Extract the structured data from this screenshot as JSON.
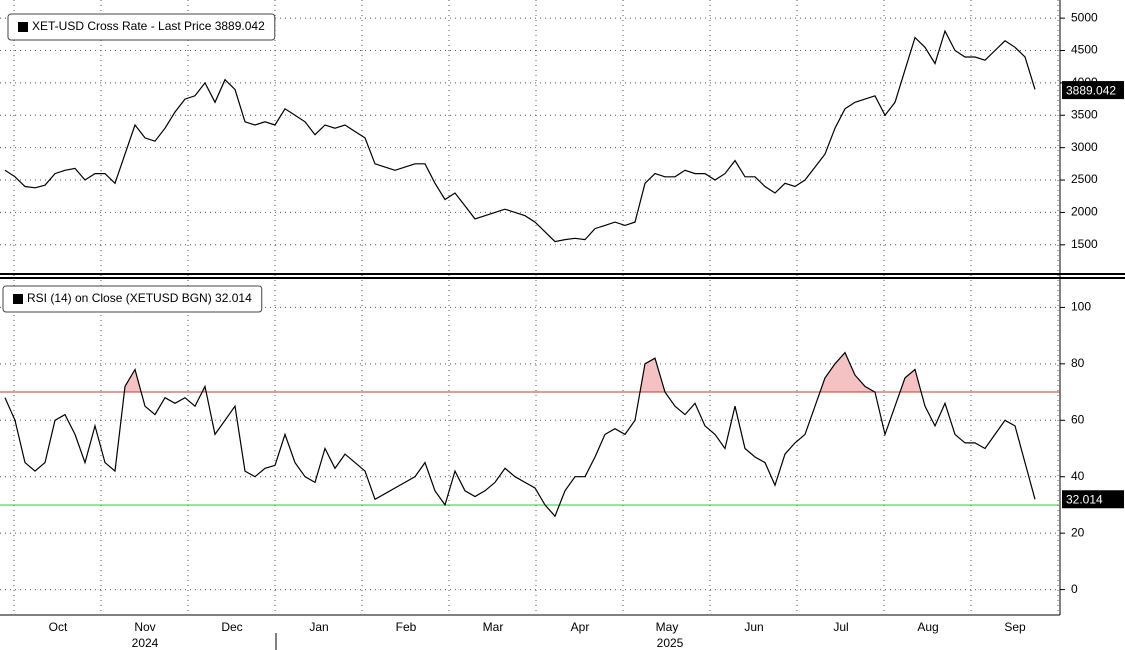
{
  "chart_data": [
    {
      "type": "line",
      "legend": "XET-USD Cross Rate - Last Price 3889.042",
      "color": "#000000",
      "last_value": 3889.042,
      "ylim": [
        1080,
        5280
      ],
      "yticks": [
        1500,
        2000,
        2500,
        3000,
        3500,
        4000,
        4500,
        5000
      ],
      "values": [
        2650,
        2550,
        2400,
        2380,
        2420,
        2600,
        2650,
        2680,
        2500,
        2600,
        2600,
        2450,
        2900,
        3350,
        3150,
        3100,
        3300,
        3550,
        3750,
        3800,
        4000,
        3700,
        4050,
        3900,
        3400,
        3350,
        3400,
        3350,
        3600,
        3500,
        3400,
        3200,
        3350,
        3300,
        3350,
        3250,
        3150,
        2750,
        2700,
        2650,
        2700,
        2750,
        2750,
        2450,
        2200,
        2300,
        2100,
        1900,
        1950,
        2000,
        2050,
        2000,
        1950,
        1850,
        1700,
        1550,
        1580,
        1600,
        1580,
        1750,
        1800,
        1850,
        1800,
        1850,
        2450,
        2600,
        2550,
        2550,
        2650,
        2600,
        2600,
        2500,
        2600,
        2800,
        2550,
        2550,
        2400,
        2300,
        2450,
        2400,
        2500,
        2700,
        2900,
        3300,
        3600,
        3700,
        3750,
        3800,
        3500,
        3700,
        4200,
        4700,
        4550,
        4300,
        4800,
        4500,
        4400,
        4400,
        4350,
        4500,
        4650,
        4550,
        4400,
        3900
      ]
    },
    {
      "type": "line",
      "legend": "RSI (14)  on Close (XETUSD BGN) 32.014",
      "color": "#000000",
      "last_value": 32.014,
      "overbought": 70,
      "oversold": 30,
      "overbought_color": "#c0392b",
      "oversold_color": "#2ecc40",
      "fill_color": "#f4c2c2",
      "ylim": [
        -9,
        109
      ],
      "yticks": [
        0,
        20,
        40,
        60,
        80,
        100
      ],
      "values": [
        68,
        60,
        45,
        42,
        45,
        60,
        62,
        55,
        45,
        58,
        45,
        42,
        72,
        78,
        65,
        62,
        68,
        66,
        68,
        65,
        72,
        55,
        60,
        65,
        42,
        40,
        43,
        44,
        55,
        45,
        40,
        38,
        50,
        43,
        48,
        45,
        42,
        32,
        34,
        36,
        38,
        40,
        45,
        35,
        30,
        42,
        35,
        33,
        35,
        38,
        43,
        40,
        38,
        36,
        30,
        26,
        35,
        40,
        40,
        47,
        55,
        57,
        55,
        60,
        80,
        82,
        70,
        65,
        62,
        66,
        58,
        55,
        50,
        65,
        50,
        47,
        45,
        37,
        48,
        52,
        55,
        65,
        75,
        80,
        84,
        76,
        72,
        70,
        55,
        65,
        75,
        78,
        65,
        58,
        66,
        55,
        52,
        52,
        50,
        55,
        60,
        58,
        45,
        32
      ]
    }
  ],
  "x_labels": {
    "months": [
      "Oct",
      "Nov",
      "Dec",
      "Jan",
      "Feb",
      "Mar",
      "Apr",
      "May",
      "Jun",
      "Jul",
      "Aug",
      "Sep"
    ],
    "years": [
      "2024",
      "2025"
    ]
  }
}
